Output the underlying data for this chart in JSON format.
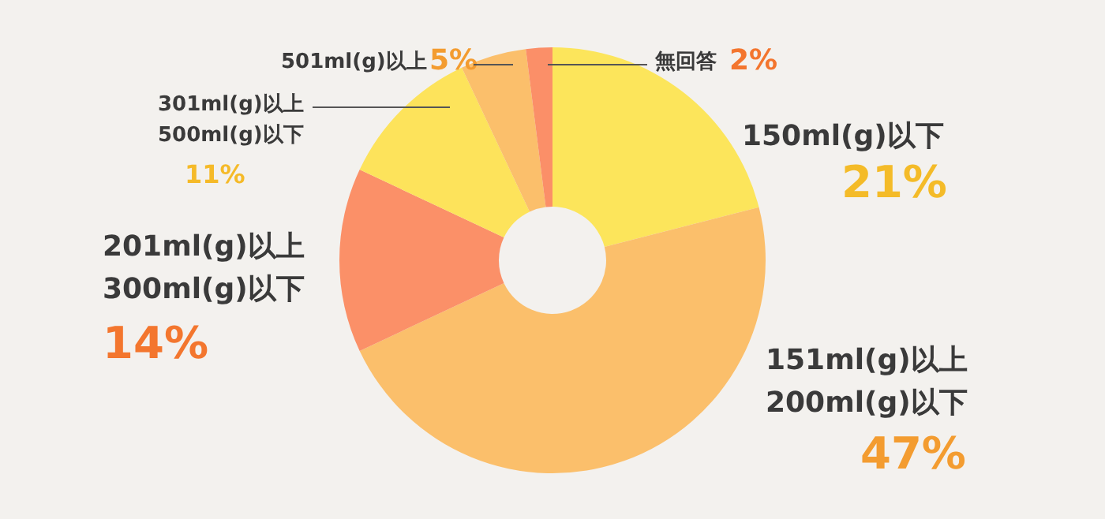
{
  "chart_data": {
    "type": "donut",
    "categories": [
      "150ml(g)以下",
      "151ml(g)以上\n200ml(g)以下",
      "201ml(g)以上\n300ml(g)以下",
      "301ml(g)以上\n500ml(g)以下",
      "501ml(g)以上",
      "無回答"
    ],
    "values": [
      21,
      47,
      14,
      11,
      5,
      2
    ],
    "colors": [
      "#fce55b",
      "#fbbf6b",
      "#fb9068",
      "#fde35b",
      "#fbbf6b",
      "#fb8f68"
    ],
    "value_labels": [
      "21%",
      "47%",
      "14%",
      "11%",
      "5%",
      "2%"
    ]
  }
}
